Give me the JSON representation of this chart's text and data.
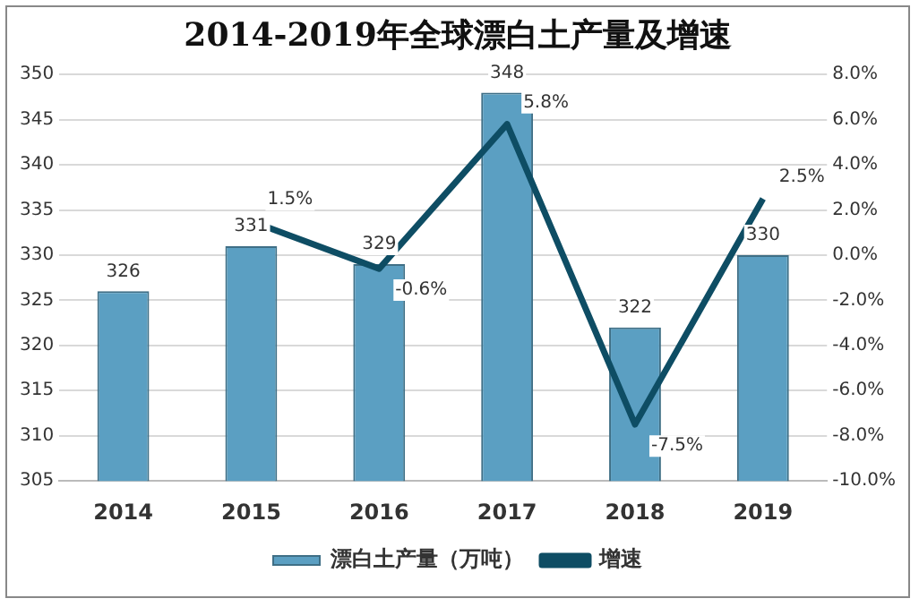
{
  "chart_data": {
    "type": "bar",
    "title": "2014-2019年全球漂白土产量及增速",
    "categories": [
      "2014",
      "2015",
      "2016",
      "2017",
      "2018",
      "2019"
    ],
    "series": [
      {
        "name": "漂白土产量（万吨）",
        "color": "#5b9fc2",
        "values": [
          326,
          331,
          329,
          348,
          322,
          330
        ]
      },
      {
        "name": "增速",
        "type": "line",
        "axis": "y2",
        "color": "#0e4d64",
        "values": [
          null,
          1.5,
          -0.6,
          5.8,
          -7.5,
          2.5
        ],
        "value_labels": [
          null,
          "1.5%",
          "-0.6%",
          "5.8%",
          "-7.5%",
          "2.5%"
        ]
      }
    ],
    "data_labels": true,
    "ylim": [
      305,
      350
    ],
    "yticks": [
      305,
      310,
      315,
      320,
      325,
      330,
      335,
      340,
      345,
      350
    ],
    "y2lim": [
      -10,
      8
    ],
    "y2ticks": [
      {
        "value": -10,
        "label": "-10.0%"
      },
      {
        "value": -8,
        "label": "-8.0%"
      },
      {
        "value": -6,
        "label": "-6.0%"
      },
      {
        "value": -4,
        "label": "-4.0%"
      },
      {
        "value": -2,
        "label": "-2.0%"
      },
      {
        "value": 0,
        "label": "0.0%"
      },
      {
        "value": 2,
        "label": "2.0%"
      },
      {
        "value": 4,
        "label": "4.0%"
      },
      {
        "value": 6,
        "label": "6.0%"
      },
      {
        "value": 8,
        "label": "8.0%"
      }
    ],
    "grid": "y",
    "legend": "bottom",
    "marker": "none",
    "line_style": "solid"
  }
}
